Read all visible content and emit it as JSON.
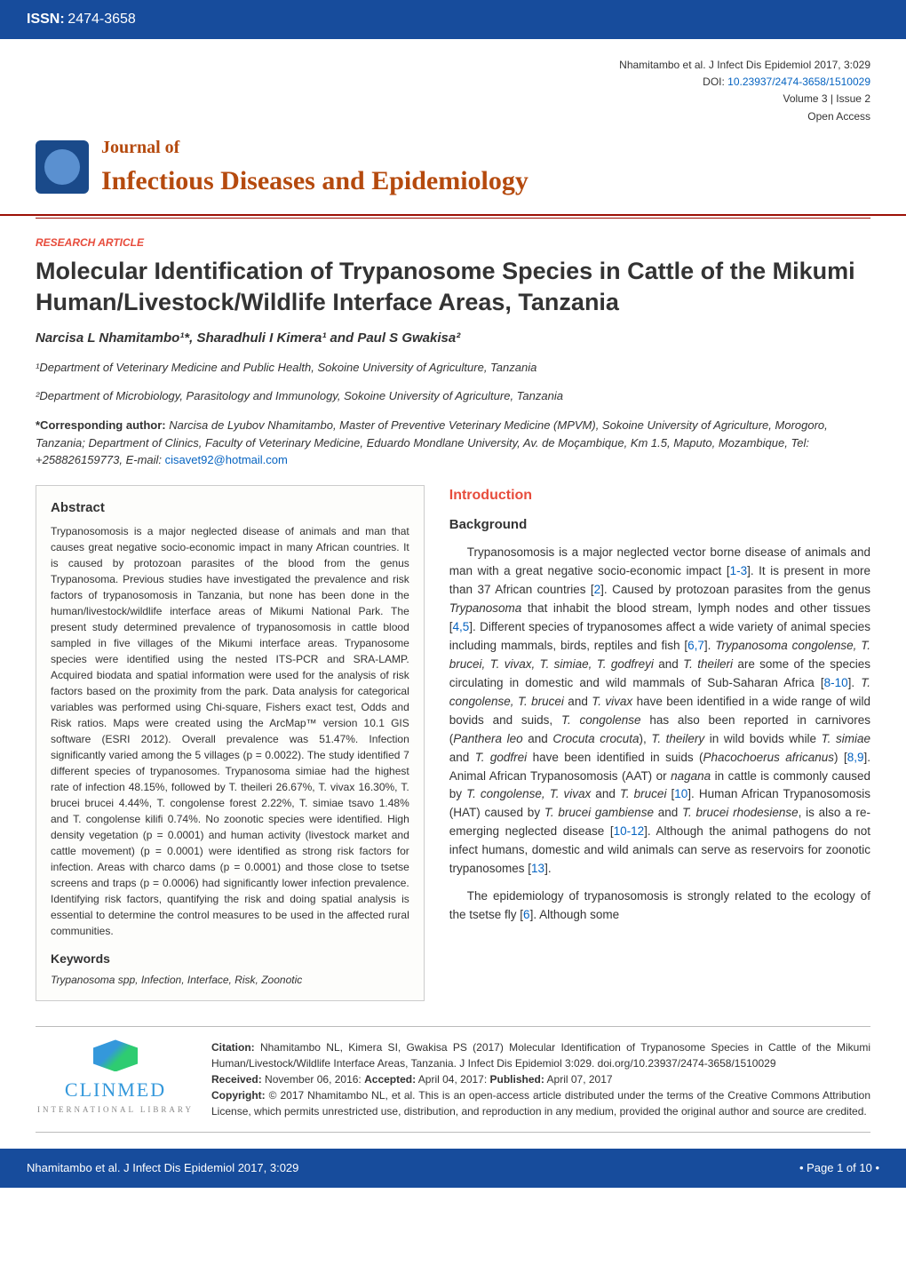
{
  "header": {
    "issn_label": "ISSN:",
    "issn": "2474-3658",
    "citation_short": "Nhamitambo et al. J Infect Dis Epidemiol 2017, 3:029",
    "doi_label": "DOI:",
    "doi": "10.23937/2474-3658/1510029",
    "volume_issue": "Volume 3 | Issue 2",
    "open_access": "Open Access",
    "journal_of": "Journal of",
    "journal_title": "Infectious Diseases and Epidemiology"
  },
  "article": {
    "type": "RESEARCH ARTICLE",
    "title": "Molecular Identification of Trypanosome Species in Cattle of the Mikumi Human/Livestock/Wildlife Interface Areas, Tanzania",
    "authors": "Narcisa L Nhamitambo¹*, Sharadhuli I Kimera¹ and Paul S Gwakisa²",
    "affil1": "¹Department of Veterinary Medicine and Public Health, Sokoine University of Agriculture, Tanzania",
    "affil2": "²Department of Microbiology, Parasitology and Immunology, Sokoine University of Agriculture, Tanzania",
    "corresp_label": "*Corresponding author:",
    "corresp_body": " Narcisa de Lyubov Nhamitambo, Master of Preventive Veterinary Medicine (MPVM), Sokoine University of Agriculture, Morogoro, Tanzania; Department of Clinics, Faculty of Veterinary Medicine, Eduardo Mondlane University, Av. de Moçambique, Km 1.5, Maputo, Mozambique, Tel: +258826159773, E-mail: ",
    "corresp_email": "cisavet92@hotmail.com"
  },
  "abstract": {
    "heading": "Abstract",
    "text": "Trypanosomosis is a major neglected disease of animals and man that causes great negative socio-economic impact in many African countries. It is caused by protozoan parasites of the blood from the genus Trypanosoma. Previous studies have investigated the prevalence and risk factors of trypanosomosis in Tanzania, but none has been done in the human/livestock/wildlife interface areas of Mikumi National Park. The present study determined prevalence of trypanosomosis in cattle blood sampled in five villages of the Mikumi interface areas. Trypanosome species were identified using the nested ITS-PCR and SRA-LAMP. Acquired biodata and spatial information were used for the analysis of risk factors based on the proximity from the park. Data analysis for categorical variables was performed using Chi-square, Fishers exact test, Odds and Risk ratios. Maps were created using the ArcMap™ version 10.1 GIS software (ESRI 2012). Overall prevalence was 51.47%. Infection significantly varied among the 5 villages (p = 0.0022). The study identified 7 different species of trypanosomes. Trypanosoma simiae had the highest rate of infection 48.15%, followed by T. theileri 26.67%, T. vivax 16.30%, T. brucei brucei 4.44%, T. congolense forest 2.22%, T. simiae tsavo 1.48% and T. congolense kilifi 0.74%. No zoonotic species were identified. High density vegetation (p = 0.0001) and human activity (livestock market and cattle movement) (p = 0.0001) were identified as strong risk factors for infection. Areas with charco dams (p = 0.0001) and those close to tsetse screens and traps (p = 0.0006) had significantly lower infection prevalence. Identifying risk factors, quantifying the risk and doing spatial analysis is essential to determine the control measures to be used in the affected rural communities.",
    "kw_heading": "Keywords",
    "kw_text": "Trypanosoma spp, Infection, Interface, Risk, Zoonotic"
  },
  "intro": {
    "heading": "Introduction",
    "sub": "Background",
    "p1_a": "Trypanosomosis is a major neglected vector borne disease of animals and man with a great negative socio-economic impact [",
    "p1_ref1": "1-3",
    "p1_b": "]. It is present in more than 37 African countries [",
    "p1_ref2": "2",
    "p1_c": "]. Caused by protozoan parasites from the genus ",
    "p1_ital1": "Trypanosoma",
    "p1_d": " that inhabit the blood stream, lymph nodes and other tissues [",
    "p1_ref3": "4,5",
    "p1_e": "]. Different species of trypanosomes affect a wide variety of animal species including mammals, birds, reptiles and fish [",
    "p1_ref4": "6,7",
    "p1_f": "]. ",
    "p1_ital2": "Trypanosoma congolense, T. brucei, T. vivax, T. simiae, T. godfreyi",
    "p1_g": " and ",
    "p1_ital3": "T. theileri",
    "p1_h": " are some of the species circulating in domestic and wild mammals of Sub-Saharan Africa [",
    "p1_ref5": "8-10",
    "p1_i": "]. ",
    "p1_ital4": "T. congolense, T. brucei",
    "p1_j": " and ",
    "p1_ital5": "T. vivax",
    "p1_k": " have been identified in a wide range of wild bovids and suids, ",
    "p1_ital6": "T. congolense",
    "p1_l": " has also been reported in carnivores (",
    "p1_ital7": "Panthera leo",
    "p1_m": " and ",
    "p1_ital8": "Crocuta crocuta",
    "p1_n": "), ",
    "p1_ital9": "T. theilery",
    "p1_o": " in wild bovids while ",
    "p1_ital10": "T. simiae",
    "p1_p": " and ",
    "p1_ital11": "T. godfrei",
    "p1_q": " have been identified in suids (",
    "p1_ital12": "Phacochoerus africanus",
    "p1_r": ") [",
    "p1_ref6": "8,9",
    "p1_s": "]. Animal African Trypanosomosis (AAT) or ",
    "p1_ital13": "nagana",
    "p1_t": " in cattle is commonly caused by ",
    "p1_ital14": "T. congolense, T. vivax",
    "p1_u": " and ",
    "p1_ital15": "T. brucei",
    "p1_v": " [",
    "p1_ref7": "10",
    "p1_w": "]. Human African Trypanosomosis (HAT) caused by ",
    "p1_ital16": "T. brucei gambiense",
    "p1_x": " and ",
    "p1_ital17": "T. brucei rhodesiense",
    "p1_y": ", is also a re-emerging neglected disease [",
    "p1_ref8": "10-12",
    "p1_z": "]. Although the animal pathogens do not infect humans, domestic and wild animals can serve as reservoirs for zoonotic trypanosomes [",
    "p1_ref9": "13",
    "p1_aa": "].",
    "p2_a": "The epidemiology of trypanosomosis is strongly related to the ecology of the tsetse fly [",
    "p2_ref1": "6",
    "p2_b": "]. Although some"
  },
  "citation": {
    "label_citation": "Citation:",
    "citation_text": " Nhamitambo NL, Kimera SI, Gwakisa PS (2017) Molecular Identification of Trypanosome Species in Cattle of the Mikumi Human/Livestock/Wildlife Interface Areas, Tanzania. J Infect Dis Epidemiol 3:029. doi.org/10.23937/2474-3658/1510029",
    "label_received": "Received:",
    "received": " November 06, 2016: ",
    "label_accepted": "Accepted:",
    "accepted": " April 04, 2017: ",
    "label_published": "Published:",
    "published": " April 07, 2017",
    "label_copyright": "Copyright:",
    "copyright_text": " © 2017 Nhamitambo NL, et al. This is an open-access article distributed under the terms of the Creative Commons Attribution License, which permits unrestricted use, distribution, and reproduction in any medium, provided the original author and source are credited.",
    "clinmed": "CLINMED",
    "clinmed_sub": "INTERNATIONAL LIBRARY"
  },
  "footer": {
    "left": "Nhamitambo et al. J Infect Dis Epidemiol 2017, 3:029",
    "right": "• Page 1 of 10 •"
  },
  "colors": {
    "blue_bar": "#174c9c",
    "red_accent": "#e74c3c",
    "red_rule": "#9c1006",
    "link_blue": "#0563c1",
    "journal_brown": "#b54a0e"
  }
}
